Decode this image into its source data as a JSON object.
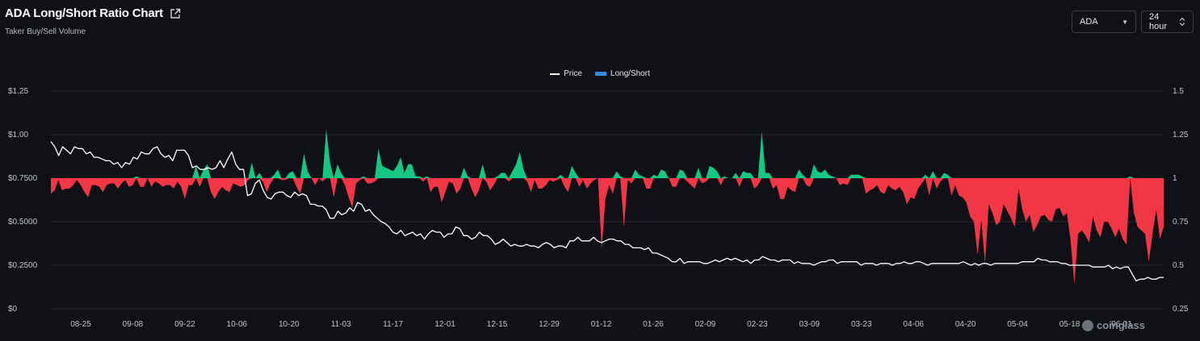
{
  "header": {
    "title": "ADA Long/Short Ratio Chart",
    "subtitle": "Taker Buy/Sell Volume"
  },
  "controls": {
    "asset_value": "ADA",
    "range_value": "24 hour"
  },
  "colors": {
    "background": "#0f1116",
    "price_line": "#ffffff",
    "long_fill": "#16c784",
    "short_fill": "#f23645",
    "legend_longshort": "#2f8fe6",
    "grid": "#2a2d35"
  },
  "watermark": "coinglass",
  "chart_data": {
    "type": "line",
    "legend": [
      "Price",
      "Long/Short"
    ],
    "legend_position": "top-center",
    "grid": true,
    "x_tick_labels": [
      "08-25",
      "09-08",
      "09-22",
      "10-06",
      "10-20",
      "11-03",
      "11-17",
      "12-01",
      "12-15",
      "12-29",
      "01-12",
      "01-26",
      "02-09",
      "02-23",
      "03-09",
      "03-23",
      "04-06",
      "04-20",
      "05-04",
      "05-18",
      "06-01"
    ],
    "y_left": {
      "ticks": [
        "$0",
        "$0.2500",
        "$0.5000",
        "$0.7500",
        "$1.00",
        "$1.25"
      ],
      "range": [
        0,
        1.25
      ]
    },
    "y_right": {
      "ticks": [
        "0.25",
        "0.5",
        "0.75",
        "1",
        "1.25",
        "1.5"
      ],
      "range": [
        0.25,
        1.5
      ],
      "baseline": 1
    },
    "series": [
      {
        "name": "Price",
        "axis": "left",
        "values": [
          0.96,
          0.93,
          0.88,
          0.93,
          0.91,
          0.89,
          0.93,
          0.92,
          0.92,
          0.89,
          0.9,
          0.87,
          0.87,
          0.86,
          0.85,
          0.85,
          0.83,
          0.84,
          0.81,
          0.84,
          0.83,
          0.87,
          0.86,
          0.9,
          0.89,
          0.89,
          0.92,
          0.93,
          0.89,
          0.87,
          0.88,
          0.85,
          0.91,
          0.91,
          0.91,
          0.88,
          0.81,
          0.82,
          0.8,
          0.8,
          0.81,
          0.8,
          0.81,
          0.85,
          0.81,
          0.86,
          0.9,
          0.83,
          0.8,
          0.8,
          0.65,
          0.66,
          0.72,
          0.74,
          0.68,
          0.64,
          0.63,
          0.66,
          0.67,
          0.67,
          0.65,
          0.64,
          0.67,
          0.65,
          0.66,
          0.65,
          0.6,
          0.6,
          0.59,
          0.59,
          0.57,
          0.52,
          0.52,
          0.56,
          0.54,
          0.55,
          0.58,
          0.56,
          0.61,
          0.6,
          0.56,
          0.57,
          0.54,
          0.52,
          0.5,
          0.49,
          0.47,
          0.44,
          0.43,
          0.45,
          0.42,
          0.43,
          0.44,
          0.42,
          0.43,
          0.4,
          0.43,
          0.45,
          0.44,
          0.44,
          0.41,
          0.43,
          0.43,
          0.47,
          0.46,
          0.42,
          0.42,
          0.4,
          0.41,
          0.44,
          0.42,
          0.42,
          0.4,
          0.37,
          0.38,
          0.4,
          0.38,
          0.36,
          0.37,
          0.36,
          0.36,
          0.37,
          0.36,
          0.36,
          0.35,
          0.37,
          0.38,
          0.37,
          0.35,
          0.36,
          0.36,
          0.35,
          0.39,
          0.39,
          0.41,
          0.39,
          0.39,
          0.39,
          0.41,
          0.39,
          0.38,
          0.39,
          0.4,
          0.4,
          0.39,
          0.39,
          0.37,
          0.37,
          0.35,
          0.35,
          0.35,
          0.34,
          0.35,
          0.32,
          0.32,
          0.31,
          0.3,
          0.29,
          0.27,
          0.27,
          0.29,
          0.26,
          0.27,
          0.27,
          0.27,
          0.27,
          0.26,
          0.26,
          0.27,
          0.28,
          0.27,
          0.28,
          0.29,
          0.28,
          0.29,
          0.28,
          0.27,
          0.28,
          0.26,
          0.28,
          0.28,
          0.3,
          0.29,
          0.28,
          0.28,
          0.27,
          0.28,
          0.28,
          0.28,
          0.26,
          0.27,
          0.26,
          0.26,
          0.26,
          0.25,
          0.26,
          0.27,
          0.27,
          0.28,
          0.28,
          0.26,
          0.27,
          0.27,
          0.27,
          0.27,
          0.27,
          0.25,
          0.26,
          0.26,
          0.26,
          0.25,
          0.26,
          0.26,
          0.26,
          0.25,
          0.26,
          0.26,
          0.27,
          0.26,
          0.26,
          0.27,
          0.27,
          0.26,
          0.25,
          0.26,
          0.26,
          0.26,
          0.26,
          0.26,
          0.26,
          0.26,
          0.26,
          0.27,
          0.26,
          0.25,
          0.26,
          0.25,
          0.26,
          0.26,
          0.25,
          0.26,
          0.26,
          0.26,
          0.26,
          0.26,
          0.26,
          0.26,
          0.27,
          0.27,
          0.27,
          0.27,
          0.29,
          0.28,
          0.28,
          0.27,
          0.27,
          0.27,
          0.26,
          0.26,
          0.25,
          0.25,
          0.25,
          0.25,
          0.25,
          0.25,
          0.24,
          0.24,
          0.24,
          0.24,
          0.25,
          0.23,
          0.24,
          0.23,
          0.24,
          0.24,
          0.2,
          0.16,
          0.17,
          0.17,
          0.18,
          0.17,
          0.17,
          0.18,
          0.18
        ]
      },
      {
        "name": "Long/Short",
        "axis": "right",
        "values": [
          0.91,
          0.93,
          0.99,
          0.93,
          0.94,
          0.94,
          0.96,
          0.99,
          0.96,
          0.92,
          0.89,
          0.96,
          0.96,
          0.95,
          0.92,
          0.96,
          0.97,
          0.97,
          0.94,
          0.97,
          0.99,
          0.95,
          0.96,
          1.01,
          0.95,
          0.95,
          1.0,
          0.95,
          0.98,
          0.97,
          0.95,
          0.96,
          0.96,
          0.94,
          0.98,
          0.95,
          0.88,
          0.96,
          0.96,
          1.07,
          0.95,
          1.05,
          1.08,
          0.92,
          0.88,
          0.92,
          0.95,
          0.93,
          0.92,
          0.97,
          0.96,
          0.95,
          0.96,
          0.99,
          1.09,
          1.0,
          1.03,
          0.98,
          0.92,
          0.97,
          1.02,
          1.05,
          0.99,
          0.99,
          1.03,
          1.04,
          0.95,
          0.91,
          1.14,
          1.04,
          1.0,
          0.96,
          1.0,
          0.98,
          1.28,
          1.09,
          0.89,
          1.08,
          1.03,
          0.96,
          0.89,
          0.83,
          0.97,
          0.99,
          1.01,
          0.97,
          0.97,
          0.98,
          1.17,
          1.07,
          1.06,
          1.05,
          1.04,
          1.07,
          1.12,
          1.03,
          1.08,
          1.08,
          1.01,
          1.01,
          0.98,
          1.01,
          0.92,
          0.95,
          0.95,
          0.86,
          0.92,
          0.98,
          0.97,
          0.91,
          0.94,
          1.06,
          1.01,
          0.94,
          0.89,
          0.93,
          1.08,
          0.98,
          0.93,
          0.96,
          1.01,
          1.03,
          1.03,
          0.98,
          1.04,
          1.08,
          1.15,
          1.05,
          0.98,
          0.92,
          0.99,
          0.94,
          0.94,
          0.96,
          0.99,
          0.98,
          0.99,
          1.02,
          0.95,
          0.92,
          1.07,
          1.03,
          0.95,
          0.99,
          0.94,
          0.97,
          0.99,
          1.0,
          0.59,
          0.88,
          0.96,
          0.91,
          1.04,
          1.01,
          0.72,
          0.99,
          0.97,
          1.05,
          1.02,
          1.01,
          0.94,
          0.94,
          1.02,
          1.01,
          1.05,
          1.04,
          1.0,
          0.95,
          0.95,
          1.05,
          1.04,
          0.98,
          0.96,
          0.94,
          1.06,
          0.97,
          0.98,
          1.07,
          1.06,
          1.04,
          0.96,
          1.01,
          1.0,
          1.0,
          1.03,
          0.95,
          1.04,
          1.03,
          1.03,
          0.94,
          0.96,
          1.27,
          1.03,
          1.03,
          0.94,
          0.96,
          0.88,
          0.88,
          0.95,
          0.93,
          0.92,
          1.05,
          1.02,
          0.96,
          0.95,
          1.08,
          1.04,
          1.03,
          1.05,
          1.02,
          1.01,
          1.0,
          0.96,
          0.97,
          0.96,
          1.02,
          1.02,
          1.02,
          1.01,
          0.91,
          0.93,
          0.94,
          0.96,
          0.92,
          0.91,
          0.96,
          0.94,
          0.93,
          0.95,
          0.92,
          0.85,
          0.89,
          0.88,
          0.94,
          0.97,
          1.02,
          0.9,
          1.04,
          0.94,
          0.98,
          1.03,
          1.02,
          0.9,
          0.96,
          0.9,
          0.89,
          0.86,
          0.78,
          0.75,
          0.56,
          0.76,
          0.51,
          0.85,
          0.8,
          0.73,
          0.75,
          0.85,
          0.81,
          0.77,
          0.72,
          0.94,
          0.82,
          0.75,
          0.79,
          0.69,
          0.73,
          0.78,
          0.79,
          0.76,
          0.75,
          0.82,
          0.83,
          0.78,
          0.8,
          0.64,
          0.39,
          0.68,
          0.7,
          0.67,
          0.63,
          0.78,
          0.7,
          0.66,
          0.75,
          0.75,
          0.71,
          0.66,
          0.71,
          0.65,
          0.62,
          1.01,
          0.8,
          0.72,
          0.7,
          0.68,
          0.52,
          0.68,
          0.82,
          0.65,
          0.72
        ]
      }
    ]
  }
}
